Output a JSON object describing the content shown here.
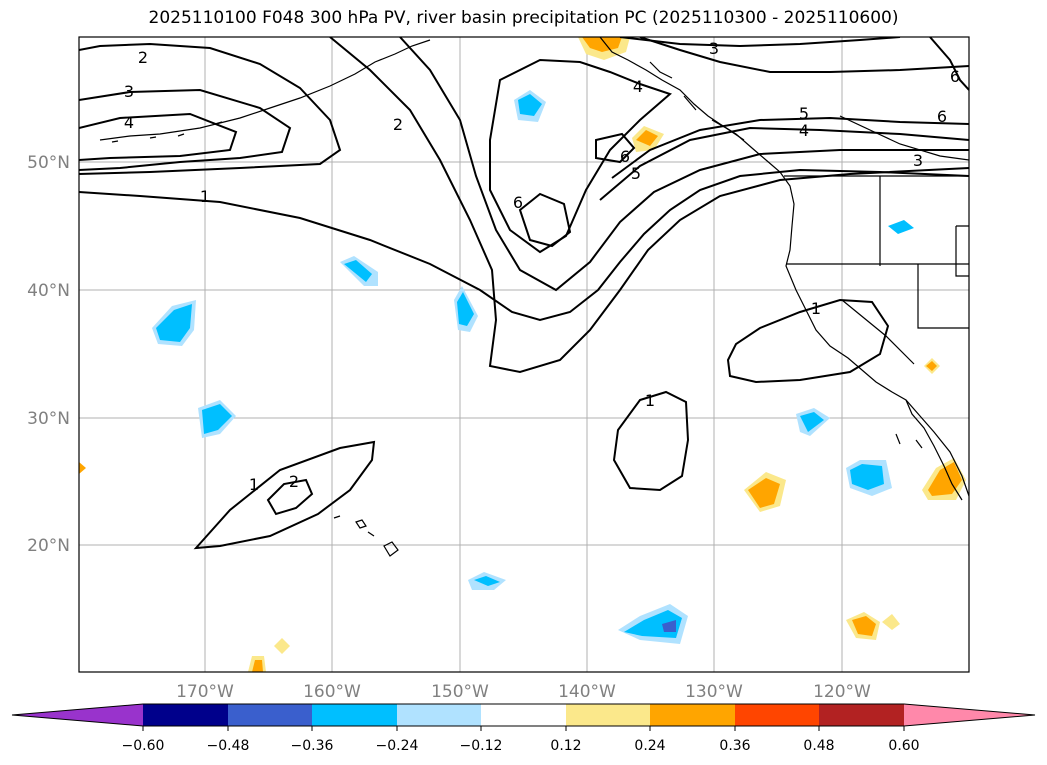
{
  "title": "2025110100 F048 300 hPa PV, river basin precipitation PC (2025110300 - 2025110600)",
  "lat_labels": [
    "50°N",
    "40°N",
    "30°N",
    "20°N"
  ],
  "lon_labels": [
    "170°W",
    "160°W",
    "150°W",
    "140°W",
    "130°W",
    "120°W"
  ],
  "contour_labels": [
    "2",
    "3",
    "4",
    "2",
    "3",
    "4",
    "5",
    "4",
    "3",
    "6",
    "6",
    "6",
    "5",
    "1",
    "6",
    "1",
    "1",
    "1",
    "2"
  ],
  "colorbar": {
    "ticks": [
      "−0.60",
      "−0.48",
      "−0.36",
      "−0.24",
      "−0.12",
      "0.12",
      "0.24",
      "0.36",
      "0.48",
      "0.60"
    ],
    "colors": [
      "#9933cc",
      "#00008b",
      "#3a5fcd",
      "#00bfff",
      "#b0e2ff",
      "#ffffff",
      "#fbe88b",
      "#ffa500",
      "#ff4500",
      "#b22222",
      "#ff88aa"
    ]
  }
}
